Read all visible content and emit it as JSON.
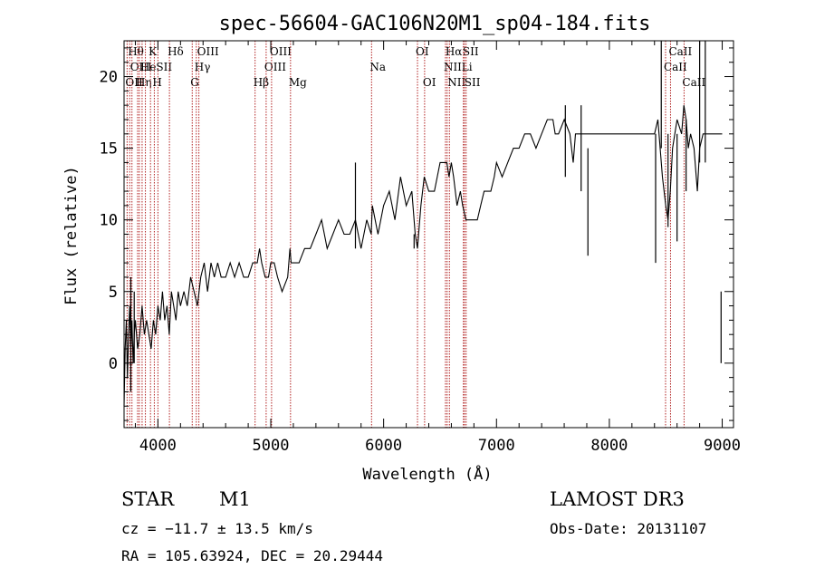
{
  "chart_data": {
    "type": "line",
    "title": "spec-56604-GAC106N20M1_sp04-184.fits",
    "xlabel": "Wavelength (Å)",
    "ylabel": "Flux (relative)",
    "xlim": [
      3700,
      9100
    ],
    "ylim": [
      -4.5,
      22.5
    ],
    "xticks": [
      4000,
      5000,
      6000,
      7000,
      8000,
      9000
    ],
    "yticks": [
      0,
      5,
      10,
      15,
      20
    ],
    "line_color": "#000000",
    "marker_color": "#b22222",
    "spectrum": {
      "x": [
        3700,
        3710,
        3720,
        3730,
        3740,
        3750,
        3760,
        3770,
        3780,
        3790,
        3800,
        3820,
        3840,
        3860,
        3880,
        3900,
        3920,
        3940,
        3960,
        3980,
        4000,
        4020,
        4040,
        4060,
        4080,
        4100,
        4120,
        4140,
        4160,
        4180,
        4200,
        4230,
        4260,
        4290,
        4320,
        4350,
        4380,
        4410,
        4440,
        4470,
        4500,
        4530,
        4560,
        4600,
        4640,
        4680,
        4720,
        4760,
        4800,
        4840,
        4860,
        4880,
        4900,
        4920,
        4950,
        4980,
        5000,
        5030,
        5060,
        5100,
        5150,
        5170,
        5180,
        5200,
        5250,
        5300,
        5350,
        5400,
        5450,
        5500,
        5550,
        5600,
        5650,
        5700,
        5750,
        5800,
        5850,
        5890,
        5900,
        5950,
        6000,
        6050,
        6100,
        6150,
        6200,
        6250,
        6280,
        6300,
        6330,
        6360,
        6400,
        6450,
        6500,
        6530,
        6560,
        6580,
        6600,
        6620,
        6650,
        6680,
        6700,
        6730,
        6760,
        6800,
        6830,
        6860,
        6890,
        6920,
        6950,
        6980,
        7000,
        7050,
        7100,
        7150,
        7200,
        7250,
        7300,
        7350,
        7400,
        7450,
        7500,
        7520,
        7550,
        7600,
        7650,
        7680,
        7700,
        7750,
        7800,
        7850,
        7900,
        7950,
        8000,
        8050,
        8100,
        8150,
        8200,
        8250,
        8300,
        8350,
        8400,
        8430,
        8450,
        8470,
        8500,
        8520,
        8540,
        8560,
        8600,
        8640,
        8660,
        8680,
        8700,
        8720,
        8750,
        8780,
        8800,
        8830,
        8860,
        8900,
        8920,
        8950,
        8980,
        9000
      ],
      "y": [
        -3,
        1,
        3,
        -1,
        2,
        4,
        1,
        3,
        0,
        2,
        3,
        1,
        2,
        4,
        2,
        3,
        2,
        1,
        3,
        2,
        4,
        3,
        5,
        3,
        4,
        2,
        5,
        4,
        3,
        5,
        4,
        5,
        4,
        6,
        5,
        4,
        6,
        7,
        5,
        7,
        6,
        7,
        6,
        6,
        7,
        6,
        7,
        6,
        6,
        7,
        7,
        7,
        8,
        7,
        6,
        6,
        7,
        7,
        6,
        5,
        6,
        8,
        7,
        7,
        7,
        8,
        8,
        9,
        10,
        8,
        9,
        10,
        9,
        9,
        10,
        8,
        10,
        9,
        11,
        9,
        11,
        12,
        10,
        13,
        11,
        12,
        9,
        8,
        11,
        13,
        12,
        12,
        14,
        14,
        14,
        13,
        14,
        13,
        11,
        12,
        11,
        10,
        10,
        10,
        10,
        11,
        12,
        12,
        12,
        13,
        14,
        13,
        14,
        15,
        15,
        16,
        16,
        15,
        16,
        17,
        17,
        16,
        16,
        17,
        16,
        14,
        16,
        16,
        16,
        16,
        16,
        16,
        16,
        16,
        16,
        16,
        16,
        16,
        16,
        16,
        16,
        17,
        15,
        13,
        11,
        10,
        12,
        15,
        17,
        16,
        18,
        17,
        15,
        16,
        15,
        12,
        15,
        16,
        16,
        16,
        16,
        16,
        16,
        16
      ],
      "spikes": [
        {
          "x": 3760,
          "top": 6,
          "bottom": -2
        },
        {
          "x": 3790,
          "top": 5,
          "bottom": 0
        },
        {
          "x": 5750,
          "top": 14,
          "bottom": 8
        },
        {
          "x": 6270,
          "top": 8,
          "bottom": 9
        },
        {
          "x": 7610,
          "top": 18,
          "bottom": 13
        },
        {
          "x": 7750,
          "top": 18,
          "bottom": 12
        },
        {
          "x": 7810,
          "top": 7.5,
          "bottom": 15
        },
        {
          "x": 8410,
          "top": 7,
          "bottom": 16
        },
        {
          "x": 8460,
          "top": 22.5,
          "bottom": 15
        },
        {
          "x": 8520,
          "top": 9.5,
          "bottom": 16
        },
        {
          "x": 8600,
          "top": 8.5,
          "bottom": 16
        },
        {
          "x": 8800,
          "top": 22.5,
          "bottom": 14
        },
        {
          "x": 8850,
          "top": 22.5,
          "bottom": 14
        },
        {
          "x": 8680,
          "top": 12,
          "bottom": 17
        },
        {
          "x": 8990,
          "top": 5,
          "bottom": 0
        }
      ]
    },
    "line_markers": [
      {
        "x": 3727,
        "label": "OII",
        "row": 2
      },
      {
        "x": 3750,
        "label": "Hθ",
        "row": 0
      },
      {
        "x": 3770,
        "label": "OIII",
        "row": 1
      },
      {
        "x": 3820,
        "label": "Hη",
        "row": 2
      },
      {
        "x": 3835,
        "label": "",
        "row": 0
      },
      {
        "x": 3860,
        "label": "He",
        "row": 1
      },
      {
        "x": 3889,
        "label": "",
        "row": 0
      },
      {
        "x": 3934,
        "label": "K",
        "row": 0
      },
      {
        "x": 3968,
        "label": "H",
        "row": 2
      },
      {
        "x": 4000,
        "label": "SII",
        "row": 1
      },
      {
        "x": 4102,
        "label": "Hδ",
        "row": 0
      },
      {
        "x": 4304,
        "label": "G",
        "row": 2
      },
      {
        "x": 4340,
        "label": "Hγ",
        "row": 1
      },
      {
        "x": 4363,
        "label": "OIII",
        "row": 0
      },
      {
        "x": 4861,
        "label": "Hβ",
        "row": 2
      },
      {
        "x": 4959,
        "label": "OIII",
        "row": 1
      },
      {
        "x": 5007,
        "label": "OIII",
        "row": 0
      },
      {
        "x": 5175,
        "label": "Mg",
        "row": 2
      },
      {
        "x": 5893,
        "label": "Na",
        "row": 1
      },
      {
        "x": 6300,
        "label": "OI",
        "row": 0
      },
      {
        "x": 6363,
        "label": "OI",
        "row": 2
      },
      {
        "x": 6548,
        "label": "NII",
        "row": 1
      },
      {
        "x": 6563,
        "label": "Hα",
        "row": 0
      },
      {
        "x": 6583,
        "label": "NII",
        "row": 2
      },
      {
        "x": 6707,
        "label": "Li",
        "row": 1
      },
      {
        "x": 6716,
        "label": "SII",
        "row": 0
      },
      {
        "x": 6731,
        "label": "SII",
        "row": 2
      },
      {
        "x": 8498,
        "label": "CaII",
        "row": 1
      },
      {
        "x": 8542,
        "label": "CaII",
        "row": 0
      },
      {
        "x": 8662,
        "label": "CaII",
        "row": 2
      }
    ]
  },
  "info": {
    "object_class": "STAR",
    "subclass": "M1",
    "survey": "LAMOST DR3",
    "redshift": "cz = −11.7 ± 13.5 km/s",
    "obs_date": "Obs-Date: 20131107",
    "coords": "RA = 105.63924, DEC =  20.29444"
  }
}
